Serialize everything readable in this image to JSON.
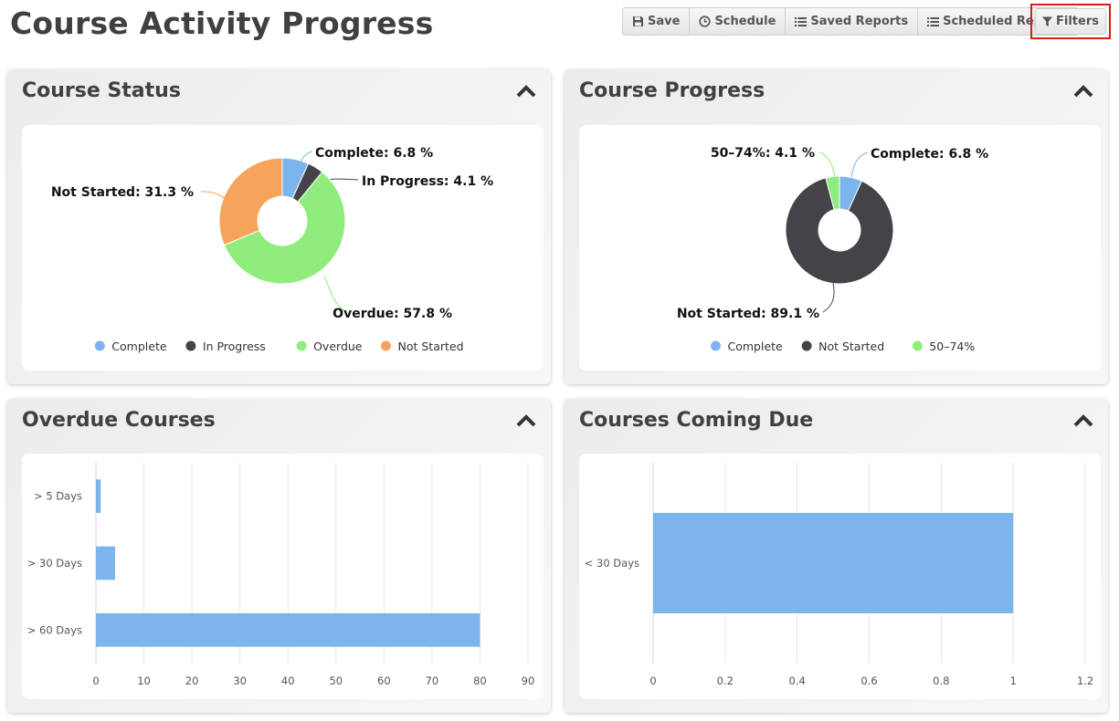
{
  "page": {
    "title": "Course Activity Progress"
  },
  "toolbar": {
    "save": "Save",
    "schedule": "Schedule",
    "saved_reports": "Saved Reports",
    "scheduled_reports": "Scheduled Reports",
    "filters": "Filters"
  },
  "panels": {
    "course_status": {
      "title": "Course Status"
    },
    "course_progress": {
      "title": "Course Progress"
    },
    "overdue_courses": {
      "title": "Overdue Courses"
    },
    "courses_coming_due": {
      "title": "Courses Coming Due"
    }
  },
  "colors": {
    "complete": "#7cb5ec",
    "in_progress": "#434348",
    "overdue": "#90ed7d",
    "not_started": "#f7a35c",
    "bar": "#7cb5ec"
  },
  "chart_data": [
    {
      "id": "course_status",
      "type": "pie",
      "donut": true,
      "slices": [
        {
          "name": "Complete",
          "value": 6.8,
          "label": "Complete: 6.8 %",
          "color": "#7cb5ec"
        },
        {
          "name": "In Progress",
          "value": 4.1,
          "label": "In Progress: 4.1 %",
          "color": "#434348"
        },
        {
          "name": "Overdue",
          "value": 57.8,
          "label": "Overdue: 57.8 %",
          "color": "#90ed7d"
        },
        {
          "name": "Not Started",
          "value": 31.3,
          "label": "Not Started: 31.3 %",
          "color": "#f7a35c"
        }
      ],
      "legend": [
        "Complete",
        "In Progress",
        "Overdue",
        "Not Started"
      ]
    },
    {
      "id": "course_progress",
      "type": "pie",
      "donut": true,
      "slices": [
        {
          "name": "Complete",
          "value": 6.8,
          "label": "Complete: 6.8 %",
          "color": "#7cb5ec"
        },
        {
          "name": "Not Started",
          "value": 89.1,
          "label": "Not Started: 89.1 %",
          "color": "#434348"
        },
        {
          "name": "50–74%",
          "value": 4.1,
          "label": "50–74%: 4.1 %",
          "color": "#90ed7d"
        }
      ],
      "legend": [
        "Complete",
        "Not Started",
        "50–74%"
      ]
    },
    {
      "id": "overdue_courses",
      "type": "bar",
      "orientation": "horizontal",
      "categories": [
        "> 5 Days",
        "> 30 Days",
        "> 60 Days"
      ],
      "values": [
        1,
        4,
        80
      ],
      "xlim": [
        0,
        90
      ],
      "ticks": [
        "0",
        "10",
        "20",
        "30",
        "40",
        "50",
        "60",
        "70",
        "80",
        "90"
      ],
      "grid": true
    },
    {
      "id": "courses_coming_due",
      "type": "bar",
      "orientation": "horizontal",
      "categories": [
        "< 30 Days"
      ],
      "values": [
        1
      ],
      "xlim": [
        0,
        1.2
      ],
      "ticks": [
        "0",
        "0.2",
        "0.4",
        "0.6",
        "0.8",
        "1",
        "1.2"
      ],
      "grid": true
    }
  ]
}
